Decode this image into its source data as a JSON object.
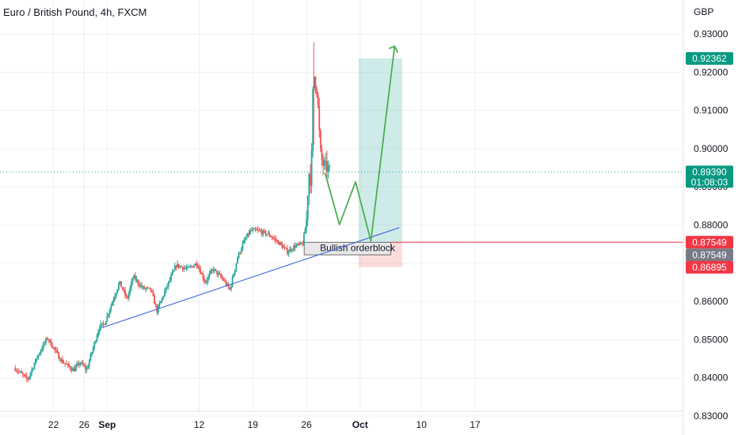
{
  "chart_data": {
    "type": "candlestick",
    "title": "Euro / British Pound, 4h, FXCM",
    "currency": "GBP",
    "ylim": [
      0.8295,
      0.9345
    ],
    "y_ticks": [
      "0.83000",
      "0.84000",
      "0.85000",
      "0.86000",
      "0.87000",
      "0.88000",
      "0.89000",
      "0.90000",
      "0.91000",
      "0.92000",
      "0.93000"
    ],
    "x_ticks": [
      {
        "label": "22",
        "day": 22
      },
      {
        "label": "26",
        "day": 26
      },
      {
        "label": "Sep",
        "day": 29,
        "bold": true
      },
      {
        "label": "12",
        "day": 41
      },
      {
        "label": "19",
        "day": 48
      },
      {
        "label": "26",
        "day": 55
      },
      {
        "label": "Oct",
        "day": 62,
        "bold": true
      },
      {
        "label": "10",
        "day": 70
      },
      {
        "label": "17",
        "day": 77
      }
    ],
    "x_axis_note": "day values are days since Aug 1",
    "colors": {
      "up": "#26a69a",
      "down": "#ef5350",
      "trend": "#4a72d8",
      "projection": "#4caf50",
      "grid": "#eef0f3"
    },
    "trendline": {
      "from": {
        "day": 28.3,
        "price": 0.8531
      },
      "to": {
        "day": 67.1,
        "price": 0.8793
      }
    },
    "orderblock": {
      "label": "Bullish orderblock",
      "from_day": 54.7,
      "to_day": 66.0,
      "top": 0.87549,
      "bottom": 0.8722
    },
    "position": {
      "from_day": 61.8,
      "to_day": 67.5,
      "entry": 0.87549,
      "target": 0.92362,
      "stop": 0.86895
    },
    "projection_path": [
      {
        "day": 57.4,
        "price": 0.8938
      },
      {
        "day": 59.3,
        "price": 0.8801
      },
      {
        "day": 61.4,
        "price": 0.8913
      },
      {
        "day": 63.4,
        "price": 0.8758
      },
      {
        "day": 66.5,
        "price": 0.9268
      }
    ],
    "current_price": 0.8939,
    "price_tags": [
      {
        "label": "0.92362",
        "price": 0.92362,
        "color": "#089981"
      },
      {
        "label": "0.89390",
        "sub": "01:08:03",
        "price": 0.8939,
        "color": "#089981"
      },
      {
        "label": "0.87549",
        "price": 0.87549,
        "color": "#f23645"
      },
      {
        "label": "0.87549",
        "price": 0.87549,
        "color": "#787b86",
        "offset": 1
      },
      {
        "label": "0.86895",
        "price": 0.86895,
        "color": "#f23645",
        "offset": 1
      }
    ],
    "keypoints": [
      {
        "day": 17.0,
        "price": 0.8425
      },
      {
        "day": 18.6,
        "price": 0.8395
      },
      {
        "day": 20.0,
        "price": 0.846
      },
      {
        "day": 21.2,
        "price": 0.8505
      },
      {
        "day": 23.0,
        "price": 0.8445
      },
      {
        "day": 24.6,
        "price": 0.842
      },
      {
        "day": 25.5,
        "price": 0.844
      },
      {
        "day": 26.3,
        "price": 0.842
      },
      {
        "day": 28.0,
        "price": 0.8535
      },
      {
        "day": 28.6,
        "price": 0.854
      },
      {
        "day": 30.6,
        "price": 0.865
      },
      {
        "day": 31.6,
        "price": 0.8605
      },
      {
        "day": 32.4,
        "price": 0.8665
      },
      {
        "day": 33.6,
        "price": 0.8635
      },
      {
        "day": 34.7,
        "price": 0.863
      },
      {
        "day": 35.5,
        "price": 0.8575
      },
      {
        "day": 36.5,
        "price": 0.8625
      },
      {
        "day": 38.0,
        "price": 0.8695
      },
      {
        "day": 39.5,
        "price": 0.8685
      },
      {
        "day": 40.7,
        "price": 0.87
      },
      {
        "day": 41.8,
        "price": 0.865
      },
      {
        "day": 42.8,
        "price": 0.8685
      },
      {
        "day": 44.2,
        "price": 0.8655
      },
      {
        "day": 45.0,
        "price": 0.863
      },
      {
        "day": 46.0,
        "price": 0.8715
      },
      {
        "day": 46.8,
        "price": 0.8755
      },
      {
        "day": 47.7,
        "price": 0.8785
      },
      {
        "day": 48.6,
        "price": 0.8785
      },
      {
        "day": 50.1,
        "price": 0.8775
      },
      {
        "day": 51.3,
        "price": 0.8755
      },
      {
        "day": 52.5,
        "price": 0.873
      },
      {
        "day": 53.5,
        "price": 0.8745
      },
      {
        "day": 54.5,
        "price": 0.875
      },
      {
        "day": 55.0,
        "price": 0.881
      },
      {
        "day": 55.3,
        "price": 0.894
      },
      {
        "day": 55.6,
        "price": 0.891
      },
      {
        "day": 55.9,
        "price": 0.92
      },
      {
        "day": 56.4,
        "price": 0.915
      },
      {
        "day": 56.8,
        "price": 0.899
      },
      {
        "day": 57.1,
        "price": 0.896
      },
      {
        "day": 57.6,
        "price": 0.895
      },
      {
        "day": 58.1,
        "price": 0.894
      }
    ]
  }
}
